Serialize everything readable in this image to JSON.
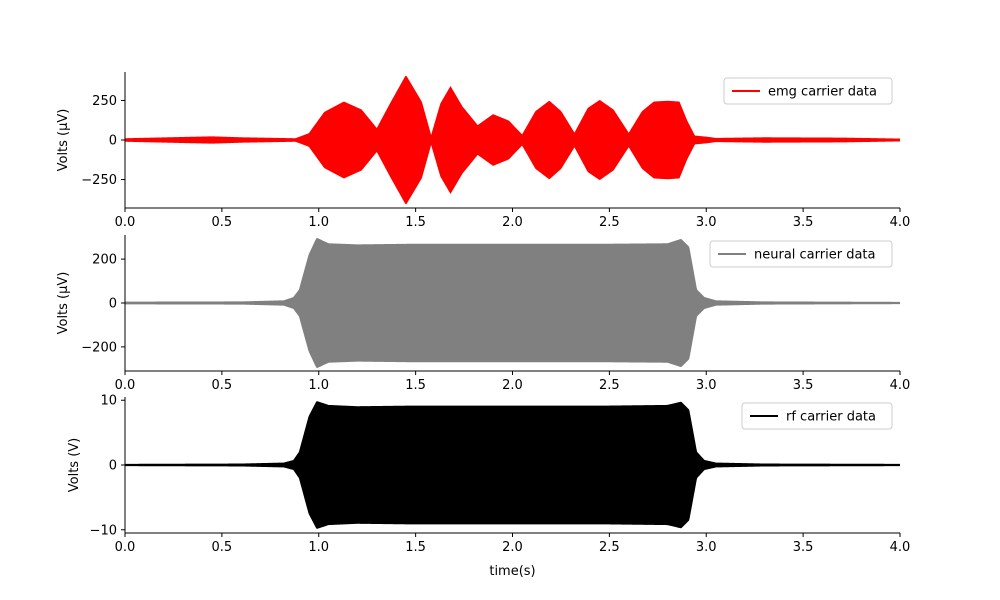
{
  "chart_data": [
    {
      "type": "line",
      "title": "",
      "xlabel": "",
      "ylabel": "Volts (μV)",
      "xlim": [
        0,
        4
      ],
      "ylim": [
        -430,
        430
      ],
      "x_ticks": [
        0.0,
        0.5,
        1.0,
        1.5,
        2.0,
        2.5,
        3.0,
        3.5,
        4.0
      ],
      "x_tick_labels": [
        "0.0",
        "0.5",
        "1.0",
        "1.5",
        "2.0",
        "2.5",
        "3.0",
        "3.5",
        "4.0"
      ],
      "y_ticks": [
        -250,
        0,
        250
      ],
      "y_tick_labels": [
        "−250",
        "0",
        "250"
      ],
      "grid": false,
      "legend_position": "top-right",
      "series": [
        {
          "name": "emg carrier data",
          "color": "#ff0000",
          "kind": "oscillating envelope",
          "envelope": {
            "t": [
              0.0,
              0.3,
              0.45,
              0.6,
              0.88,
              0.95,
              1.03,
              1.13,
              1.22,
              1.3,
              1.37,
              1.45,
              1.53,
              1.58,
              1.63,
              1.68,
              1.74,
              1.82,
              1.9,
              1.98,
              2.05,
              2.12,
              2.19,
              2.25,
              2.32,
              2.39,
              2.45,
              2.52,
              2.6,
              2.67,
              2.73,
              2.8,
              2.86,
              2.9,
              2.94,
              3.0,
              3.05,
              3.3,
              3.7,
              4.0
            ],
            "amplitude": [
              8,
              16,
              20,
              14,
              8,
              40,
              175,
              240,
              190,
              70,
              230,
              405,
              240,
              20,
              230,
              335,
              210,
              90,
              160,
              120,
              30,
              180,
              245,
              180,
              40,
              200,
              250,
              190,
              40,
              180,
              240,
              245,
              240,
              120,
              25,
              18,
              10,
              14,
              12,
              6
            ]
          }
        }
      ]
    },
    {
      "type": "line",
      "title": "",
      "xlabel": "",
      "ylabel": "Volts (μV)",
      "xlim": [
        0,
        4
      ],
      "ylim": [
        -310,
        310
      ],
      "x_ticks": [
        0.0,
        0.5,
        1.0,
        1.5,
        2.0,
        2.5,
        3.0,
        3.5,
        4.0
      ],
      "x_tick_labels": [
        "0.0",
        "0.5",
        "1.0",
        "1.5",
        "2.0",
        "2.5",
        "3.0",
        "3.5",
        "4.0"
      ],
      "y_ticks": [
        -200,
        0,
        200
      ],
      "y_tick_labels": [
        "−200",
        "0",
        "200"
      ],
      "grid": false,
      "legend_position": "top-right",
      "series": [
        {
          "name": "neural carrier data",
          "color": "#808080",
          "kind": "oscillating envelope",
          "envelope": {
            "t": [
              0.0,
              0.6,
              0.82,
              0.87,
              0.9,
              0.95,
              0.99,
              1.05,
              1.2,
              1.5,
              2.0,
              2.5,
              2.8,
              2.87,
              2.91,
              2.95,
              2.99,
              3.05,
              3.3,
              4.0
            ],
            "amplitude": [
              4,
              5,
              10,
              25,
              60,
              220,
              295,
              270,
              265,
              268,
              268,
              268,
              270,
              290,
              255,
              60,
              25,
              10,
              5,
              3
            ]
          }
        }
      ]
    },
    {
      "type": "line",
      "title": "",
      "xlabel": "time(s)",
      "ylabel": "Volts (V)",
      "xlim": [
        0,
        4
      ],
      "ylim": [
        -10.5,
        10.5
      ],
      "x_ticks": [
        0.0,
        0.5,
        1.0,
        1.5,
        2.0,
        2.5,
        3.0,
        3.5,
        4.0
      ],
      "x_tick_labels": [
        "0.0",
        "0.5",
        "1.0",
        "1.5",
        "2.0",
        "2.5",
        "3.0",
        "3.5",
        "4.0"
      ],
      "y_ticks": [
        -10,
        0,
        10
      ],
      "y_tick_labels": [
        "−10",
        "0",
        "10"
      ],
      "grid": false,
      "legend_position": "top-right",
      "series": [
        {
          "name": "rf carrier data",
          "color": "#000000",
          "kind": "oscillating envelope",
          "envelope": {
            "t": [
              0.0,
              0.6,
              0.82,
              0.87,
              0.9,
              0.95,
              0.99,
              1.05,
              1.2,
              1.5,
              2.0,
              2.5,
              2.8,
              2.87,
              2.91,
              2.95,
              2.99,
              3.05,
              3.3,
              4.0
            ],
            "amplitude": [
              0.1,
              0.15,
              0.3,
              0.7,
              2.0,
              7.5,
              9.8,
              9.2,
              9.0,
              9.1,
              9.1,
              9.1,
              9.2,
              9.7,
              8.5,
              2.0,
              0.7,
              0.3,
              0.15,
              0.1
            ]
          }
        }
      ]
    }
  ]
}
